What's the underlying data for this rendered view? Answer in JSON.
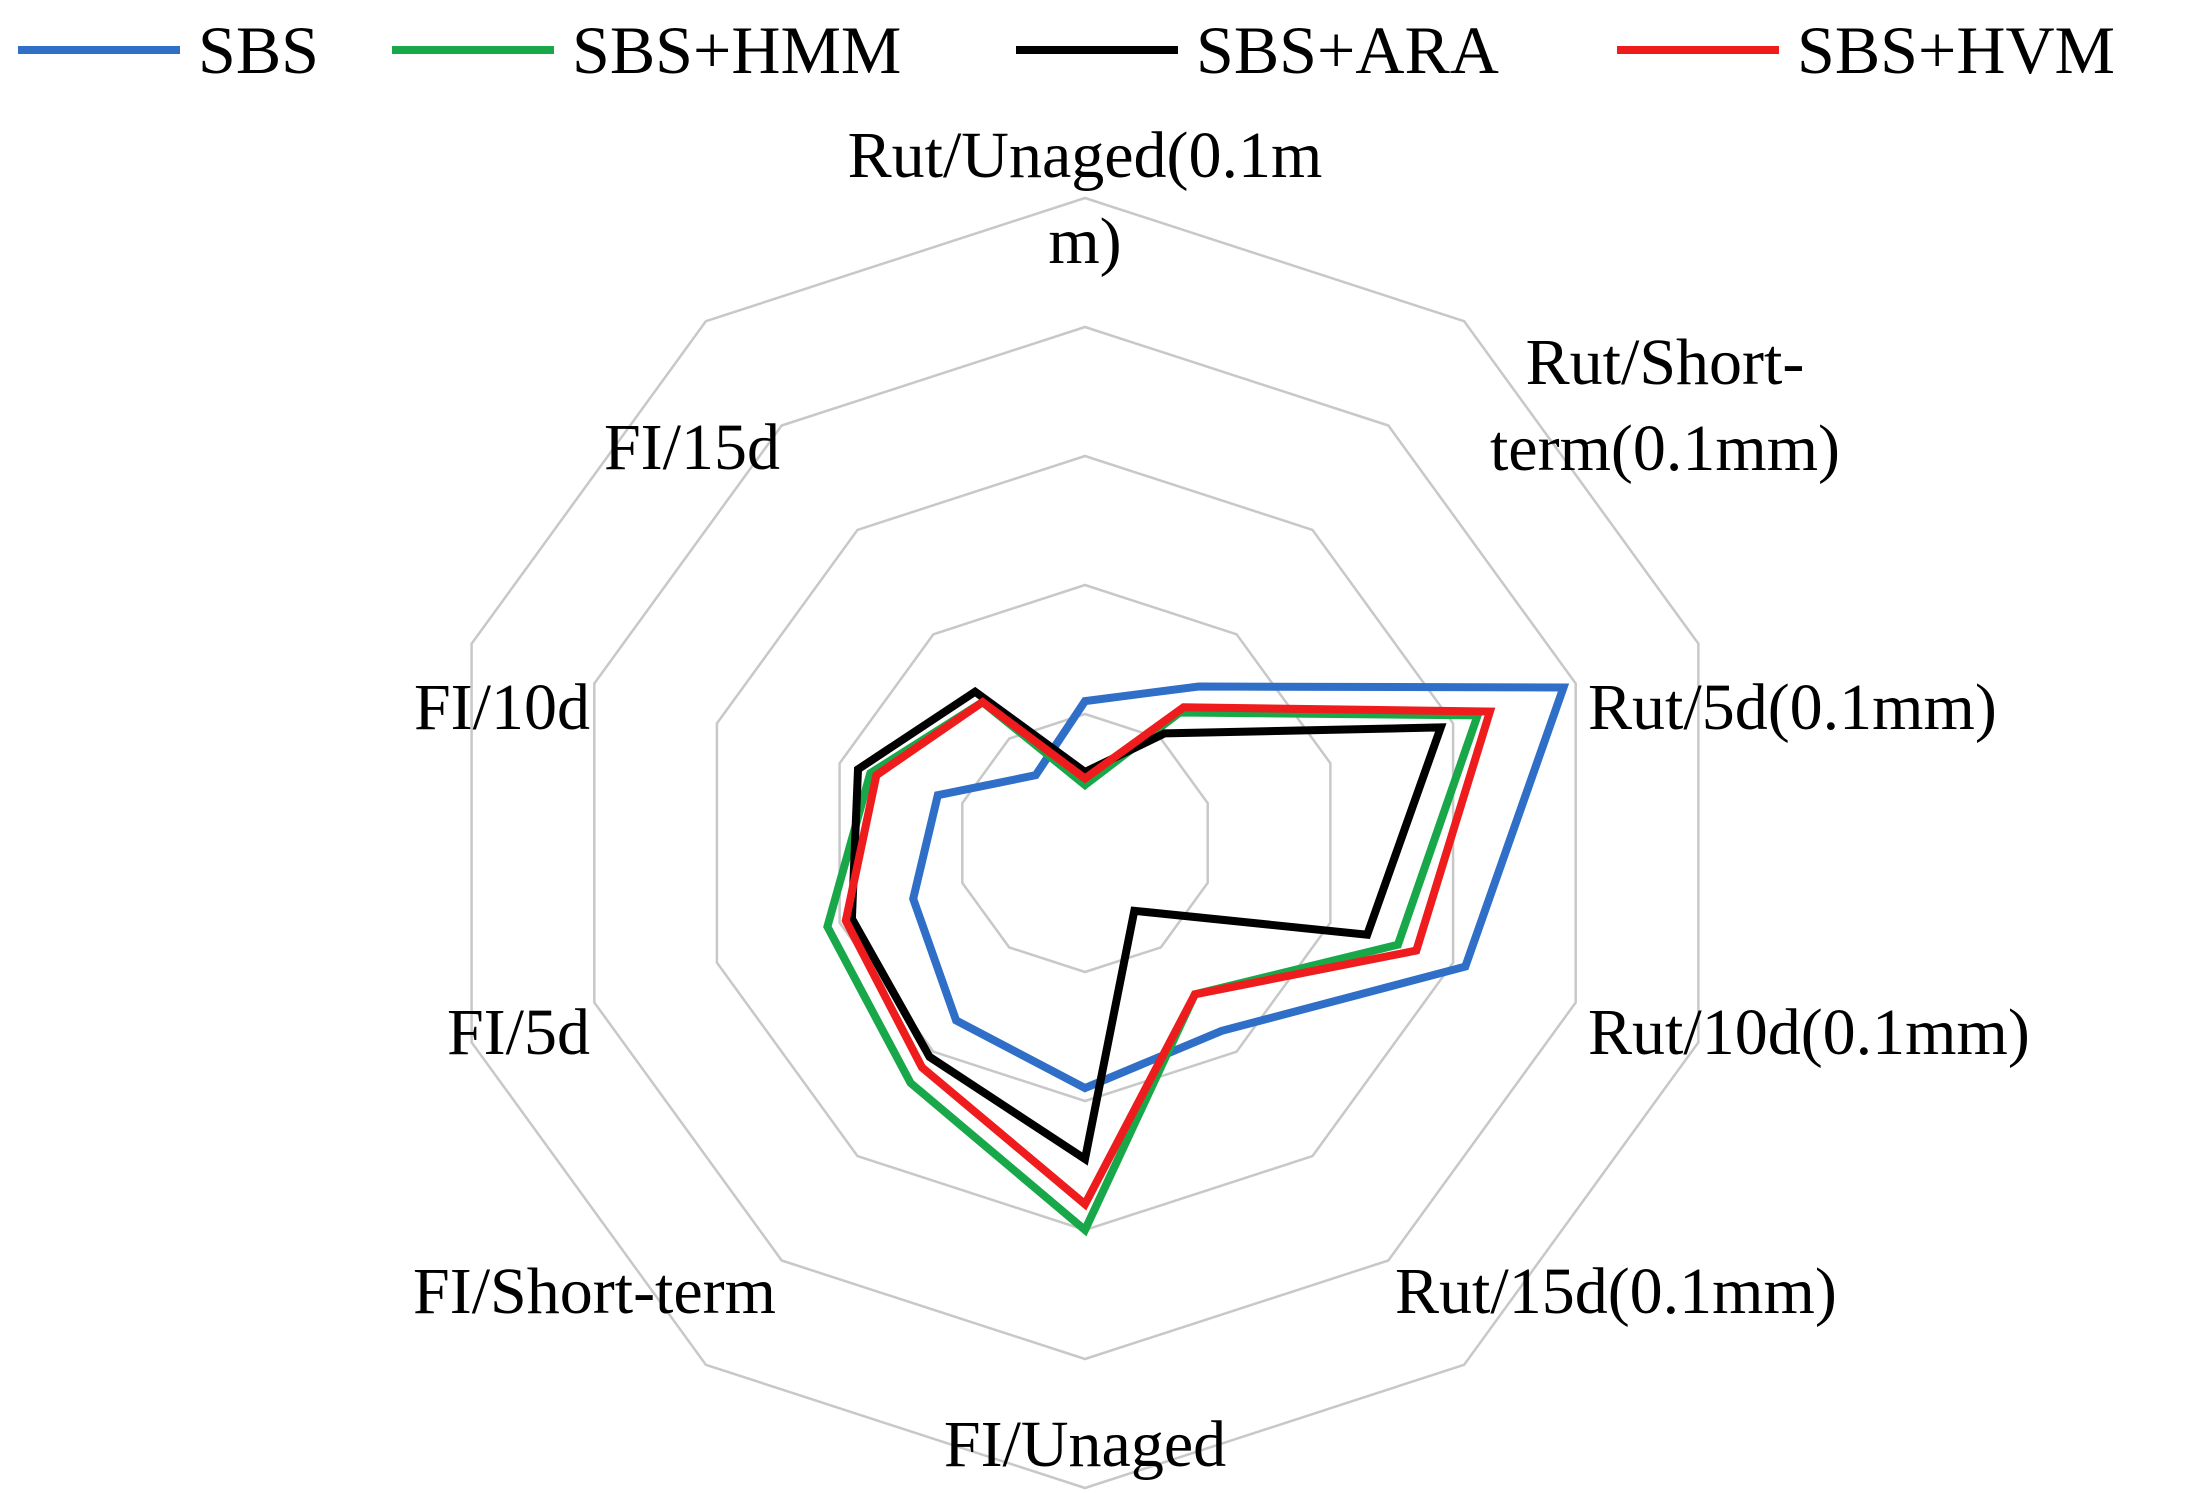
{
  "chart_data": {
    "type": "radar",
    "title": "",
    "legend_position": "top",
    "grid": true,
    "r_range": [
      0,
      5
    ],
    "r_grid_levels": [
      1,
      2,
      3,
      4,
      5
    ],
    "categories": [
      "Rut/Unaged(0.1mm)",
      "Rut/Short-term(0.1mm)",
      "Rut/5d(0.1mm)",
      "Rut/10d(0.1mm)",
      "Rut/15d(0.1mm)",
      "FI/Unaged",
      "FI/Short-term",
      "FI/5d",
      "FI/10d",
      "FI/15d"
    ],
    "category_label_lines": [
      [
        "Rut/Unaged(0.1m",
        "m)"
      ],
      [
        "Rut/Short-",
        "term(0.1mm)"
      ],
      [
        "Rut/5d(0.1mm)"
      ],
      [
        "Rut/10d(0.1mm)"
      ],
      [
        "Rut/15d(0.1mm)"
      ],
      [
        "FI/Unaged"
      ],
      [
        "FI/Short-term"
      ],
      [
        "FI/5d"
      ],
      [
        "FI/10d"
      ],
      [
        "FI/15d"
      ]
    ],
    "series": [
      {
        "name": "SBS",
        "color": "#2f6fc7",
        "values": [
          1.1,
          1.5,
          3.9,
          3.1,
          1.8,
          1.9,
          1.7,
          1.4,
          1.2,
          0.65
        ]
      },
      {
        "name": "SBS+HMM",
        "color": "#18a84a",
        "values": [
          0.45,
          1.25,
          3.2,
          2.55,
          1.45,
          3.0,
          2.3,
          2.1,
          1.75,
          1.35
        ]
      },
      {
        "name": "SBS+ARA",
        "color": "#000000",
        "values": [
          0.55,
          1.05,
          2.9,
          2.3,
          0.65,
          2.45,
          2.05,
          1.9,
          1.85,
          1.45
        ]
      },
      {
        "name": "SBS+HVM",
        "color": "#ee1c1c",
        "values": [
          0.5,
          1.3,
          3.3,
          2.7,
          1.45,
          2.8,
          2.15,
          1.95,
          1.7,
          1.35
        ]
      }
    ]
  }
}
